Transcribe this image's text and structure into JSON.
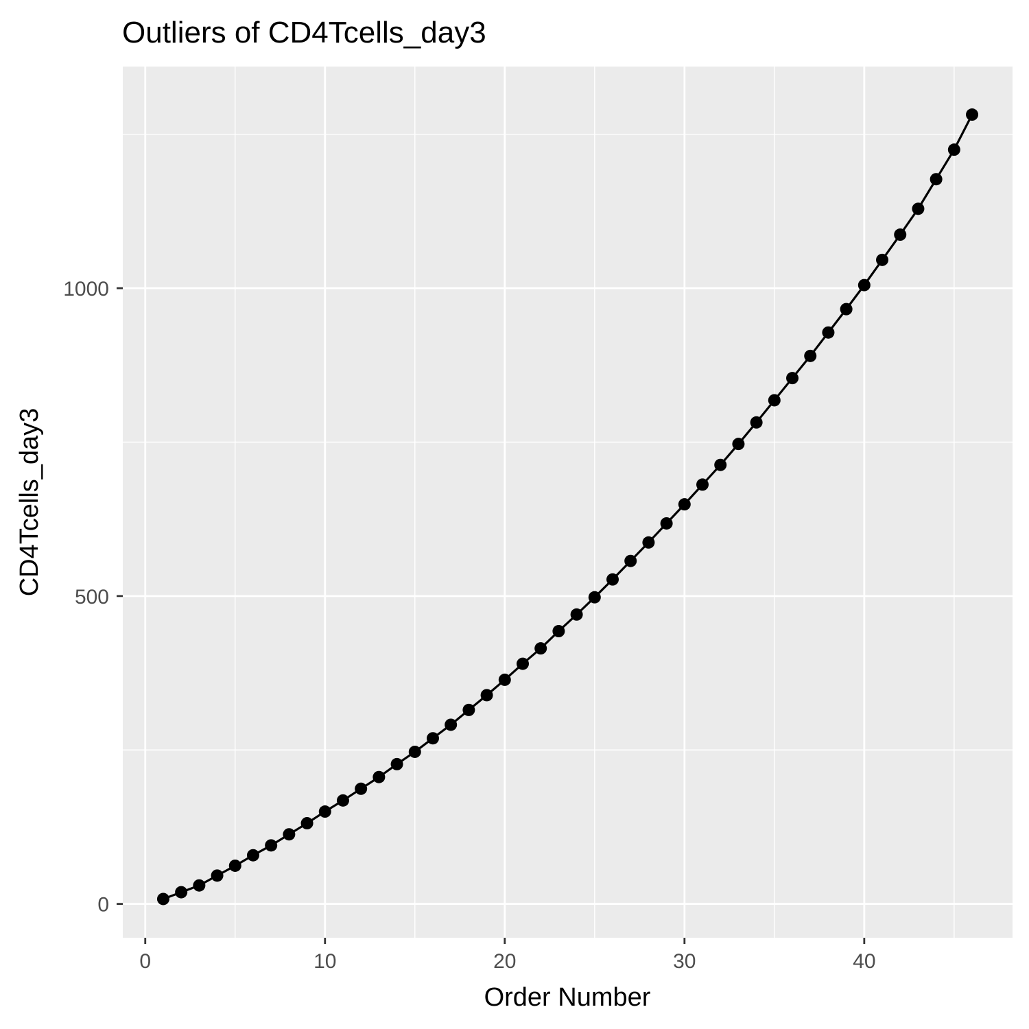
{
  "chart_data": {
    "type": "line",
    "title": "Outliers of CD4Tcells_day3",
    "xlabel": "Order Number",
    "ylabel": "CD4Tcells_day3",
    "xlim": [
      -1.25,
      48.25
    ],
    "ylim": [
      -55,
      1360
    ],
    "x_ticks": [
      0,
      10,
      20,
      30,
      40
    ],
    "x_minor_ticks": [
      5,
      15,
      25,
      35,
      45
    ],
    "y_ticks": [
      0,
      500,
      1000
    ],
    "y_minor_ticks": [
      250,
      750,
      1250
    ],
    "grid": true,
    "legend": "none",
    "panel_background": "#ebebeb",
    "grid_color": "#ffffff",
    "series": [
      {
        "color": "#000000",
        "x": [
          1,
          2,
          3,
          4,
          5,
          6,
          7,
          8,
          9,
          10,
          11,
          12,
          13,
          14,
          15,
          16,
          17,
          18,
          19,
          20,
          21,
          22,
          23,
          24,
          25,
          26,
          27,
          28,
          29,
          30,
          31,
          32,
          33,
          34,
          35,
          36,
          37,
          38,
          39,
          40,
          41,
          42,
          43,
          44,
          45,
          46
        ],
        "y": [
          8,
          19,
          30,
          46,
          62,
          79,
          95,
          113,
          131,
          150,
          168,
          187,
          206,
          227,
          247,
          269,
          291,
          315,
          339,
          364,
          390,
          415,
          443,
          470,
          498,
          527,
          557,
          587,
          618,
          649,
          681,
          713,
          747,
          782,
          818,
          854,
          890,
          928,
          966,
          1005,
          1046,
          1087,
          1129,
          1177,
          1225,
          1282
        ]
      }
    ]
  }
}
